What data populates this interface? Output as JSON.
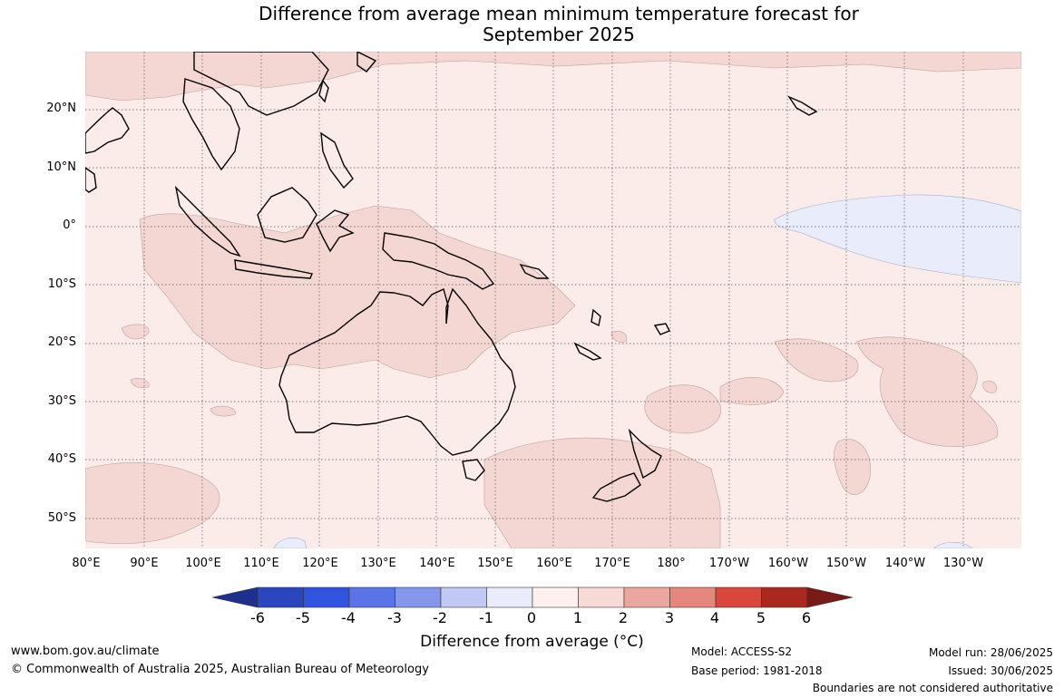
{
  "title": {
    "line1": "Difference from average mean minimum temperature forecast for",
    "line2": "September 2025"
  },
  "map": {
    "lat_labels": [
      "20°N",
      "10°N",
      "0°",
      "10°S",
      "20°S",
      "30°S",
      "40°S",
      "50°S"
    ],
    "lon_labels": [
      "80°E",
      "90°E",
      "100°E",
      "110°E",
      "120°E",
      "130°E",
      "140°E",
      "150°E",
      "160°E",
      "170°E",
      "180°",
      "170°W",
      "160°W",
      "150°W",
      "140°W",
      "130°W"
    ],
    "colors": {
      "ocean_0_1": "#fbecea",
      "band_1_2": "#f4d6d3",
      "band_m1_0": "#e8ecfb",
      "coast": "#000000"
    }
  },
  "colorbar": {
    "ticks": [
      "-6",
      "-5",
      "-4",
      "-3",
      "-2",
      "-1",
      "0",
      "1",
      "2",
      "3",
      "4",
      "5",
      "6"
    ],
    "colors": [
      "#1e2f8e",
      "#2b46bd",
      "#3154e0",
      "#5a74e6",
      "#8497ea",
      "#c0c9f3",
      "#e9ecfb",
      "#fdf1ee",
      "#f7dad6",
      "#eba69f",
      "#e5877d",
      "#d8473c",
      "#a9291f",
      "#7a1a16"
    ],
    "label": "Difference from average (°C)"
  },
  "footer": {
    "website": "www.bom.gov.au/climate",
    "copyright": "© Commonwealth of Australia 2025, Australian Bureau of Meteorology",
    "model": "Model: ACCESS-S2",
    "base_period": "Base period: 1981-2018",
    "model_run": "Model run: 28/06/2025",
    "issued": "Issued: 30/06/2025",
    "boundaries": "Boundaries are not considered authoritative"
  }
}
